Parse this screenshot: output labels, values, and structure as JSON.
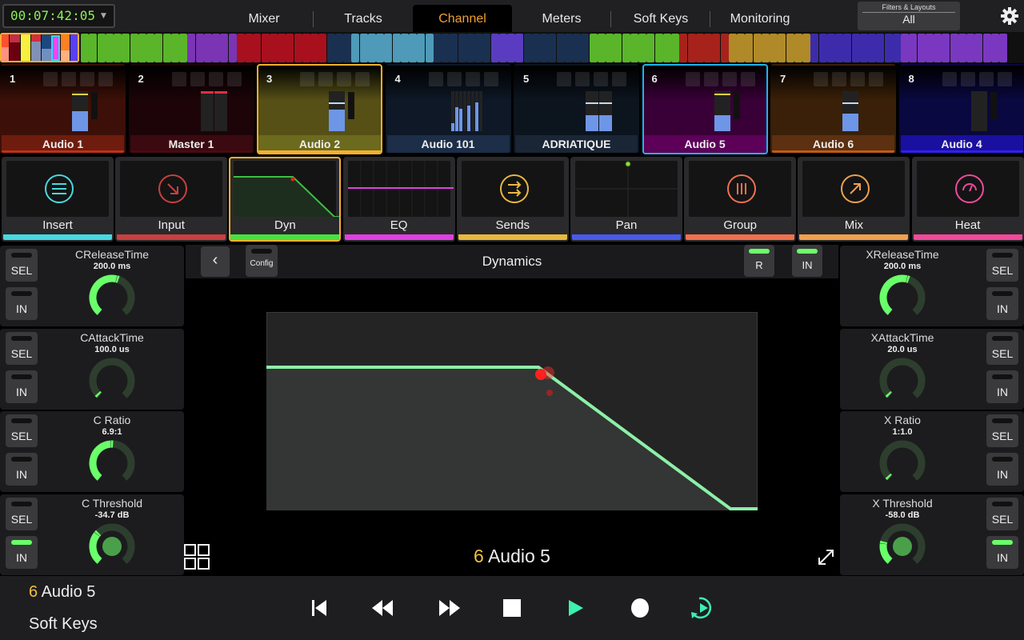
{
  "topbar": {
    "timecode": "00:07:42:05",
    "tabs": [
      {
        "label": "Mixer"
      },
      {
        "label": "Tracks"
      },
      {
        "label": "Channel",
        "active": true
      },
      {
        "label": "Meters"
      },
      {
        "label": "Soft Keys"
      },
      {
        "label": "Monitoring"
      }
    ],
    "filters_title": "Filters & Layouts",
    "filters_value": "All"
  },
  "strip_groups": [
    {
      "color": "#5ab52a",
      "count": 13
    },
    {
      "color": "#7a34b4",
      "count": 6
    },
    {
      "color": "#a8101e",
      "count": 11
    },
    {
      "color": "#1a3050",
      "count": 3
    },
    {
      "color": "#4e9ab8",
      "count": 10
    },
    {
      "color": "#1a3050",
      "count": 7
    },
    {
      "color": "#5a3cc0",
      "count": 4
    },
    {
      "color": "#1a3050",
      "count": 8
    },
    {
      "color": "#5ab52a",
      "count": 11
    },
    {
      "color": "#a8221c",
      "count": 6
    },
    {
      "color": "#b08a28",
      "count": 10
    },
    {
      "color": "#3c2cac",
      "count": 11
    },
    {
      "color": "#7a38c0",
      "count": 13
    }
  ],
  "channels": [
    {
      "num": "1",
      "name": "Audio 1",
      "bg": "#3c1008",
      "label_bg": "#6e1c0e",
      "bar": "#c0301a",
      "fader": 0.5,
      "meter": true
    },
    {
      "num": "2",
      "name": "Master 1",
      "bg": "#1c0408",
      "label_bg": "#3a0a10",
      "bar": "#4a0a14",
      "fader": 0,
      "stereo": true
    },
    {
      "num": "3",
      "name": "Audio 2",
      "bg": "#565016",
      "label_bg": "#6c6a1e",
      "bar": "#f5b030",
      "fader": 0.55,
      "meter": true,
      "selected": "#f5b030"
    },
    {
      "num": "4",
      "name": "Audio 101",
      "bg": "#0e1826",
      "label_bg": "#1c2e48",
      "bar": "#1c2e48",
      "fader": 0.4,
      "multi": true
    },
    {
      "num": "5",
      "name": "ADRIATIQUE",
      "bg": "#0c141e",
      "label_bg": "#1a2636",
      "bar": "#1a2636",
      "fader": 0.4,
      "stereo": true
    },
    {
      "num": "6",
      "name": "Audio 5",
      "bg": "#380036",
      "label_bg": "#5c0058",
      "bar": "#5c0058",
      "fader": 0.4,
      "meter": true,
      "selected": "#1eb4f0"
    },
    {
      "num": "7",
      "name": "Audio 6",
      "bg": "#3a2008",
      "label_bg": "#5c3010",
      "bar": "#c05a1a",
      "fader": 0.45
    },
    {
      "num": "8",
      "name": "Audio 4",
      "bg": "#0a0840",
      "label_bg": "#1a10a0",
      "bar": "#3020f0",
      "fader": 0,
      "meter": true
    }
  ],
  "tiles": [
    {
      "label": "Insert",
      "color": "#4ad8e0",
      "icon": "list"
    },
    {
      "label": "Input",
      "color": "#c84040",
      "icon": "arrow-down-right"
    },
    {
      "label": "Dyn",
      "color": "#4ae040",
      "icon": "dyn-graph",
      "selected": true
    },
    {
      "label": "EQ",
      "color": "#e040e0",
      "icon": "eq-graph"
    },
    {
      "label": "Sends",
      "color": "#e8b840",
      "icon": "sends-arrows"
    },
    {
      "label": "Pan",
      "color": "#4a5ae8",
      "icon": "pan-graph"
    },
    {
      "label": "Group",
      "color": "#f07050",
      "icon": "bars"
    },
    {
      "label": "Mix",
      "color": "#f0a050",
      "icon": "arrow-up-right"
    },
    {
      "label": "Heat",
      "color": "#f04a9a",
      "icon": "gauge"
    }
  ],
  "params_left": [
    {
      "name": "CReleaseTime",
      "value": "200.0 ms",
      "level": 0.56,
      "in_on": false
    },
    {
      "name": "CAttackTime",
      "value": "100.0 us",
      "level": 0.02,
      "in_on": false
    },
    {
      "name": "C Ratio",
      "value": "6.9:1",
      "level": 0.5,
      "in_on": false
    },
    {
      "name": "C Threshold",
      "value": "-34.7 dB",
      "level": 0.33,
      "in_on": true,
      "dot": true
    }
  ],
  "params_right": [
    {
      "name": "XReleaseTime",
      "value": "200.0 ms",
      "level": 0.56,
      "in_on": false
    },
    {
      "name": "XAttackTime",
      "value": "20.0 us",
      "level": 0.02,
      "in_on": false
    },
    {
      "name": "X Ratio",
      "value": "1:1.0",
      "level": 0.02,
      "in_on": false
    },
    {
      "name": "X Threshold",
      "value": "-58.0 dB",
      "level": 0.22,
      "in_on": true,
      "dot": true
    }
  ],
  "button_labels": {
    "sel": "SEL",
    "in": "IN"
  },
  "center": {
    "title": "Dynamics",
    "config": "Config",
    "r": "R",
    "in": "IN",
    "channel_num": "6",
    "channel_name": "Audio 5"
  },
  "footer": {
    "channel_num": "6",
    "channel_name": "Audio 5",
    "mode": "Soft Keys"
  },
  "transport": [
    "skip-to-start",
    "rewind",
    "fast-forward",
    "stop",
    "play",
    "record",
    "loop-play"
  ],
  "colors": {
    "accent": "#f0a030",
    "knob": "#6aff6a",
    "play": "#3cf0b0",
    "curve": "#8cf0a8"
  }
}
